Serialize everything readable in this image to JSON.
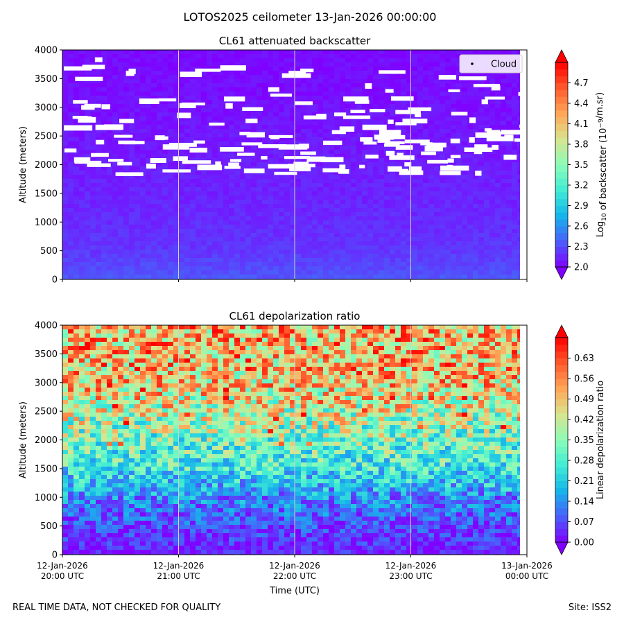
{
  "suptitle": "LOTOS2025 ceilometer 13-Jan-2026 00:00:00",
  "footer": {
    "left": "REAL TIME DATA, NOT CHECKED FOR QUALITY",
    "right": "Site: ISS2"
  },
  "colors": {
    "colormap": [
      "#8000ff",
      "#4a5efb",
      "#16b4eb",
      "#40ecd4",
      "#8cfcb8",
      "#d8e48e",
      "#ffa757",
      "#ff5a2c",
      "#ff0000"
    ],
    "cloud_marker": "#ffffff",
    "gridline": "#d0d0d0"
  },
  "chart_data": [
    {
      "type": "heatmap",
      "panel": "top",
      "title": "CL61 attenuated backscatter",
      "xlabel": "",
      "ylabel": "Altitude (meters)",
      "ylim": [
        0,
        4000
      ],
      "yticks": [
        0,
        500,
        1000,
        1500,
        2000,
        2500,
        3000,
        3500,
        4000
      ],
      "ytick_labels": [
        "0",
        "500",
        "1000",
        "1500",
        "2000",
        "2500",
        "3000",
        "3500",
        "4000"
      ],
      "xlim_hours": [
        20,
        24
      ],
      "xticks_hours": [
        20,
        21,
        22,
        23,
        24
      ],
      "show_xtick_labels": false,
      "grid": "vertical",
      "data_end_hour": 23.94,
      "legend": {
        "label": "Cloud",
        "placement": "top-right"
      },
      "colorbar": {
        "label": "Log10 of backscatter (10^-9/m.sr)",
        "range": [
          2.0,
          5.0
        ],
        "ticks": [
          2.0,
          2.3,
          2.6,
          2.9,
          3.2,
          3.5,
          3.8,
          4.1,
          4.4,
          4.7
        ],
        "tick_labels": [
          "2.0",
          "2.3",
          "2.6",
          "2.9",
          "3.2",
          "3.5",
          "3.8",
          "4.1",
          "4.4",
          "4.7"
        ],
        "extend": "both"
      },
      "profile": {
        "altitudes": [
          0,
          250,
          500,
          1000,
          1500,
          2000,
          2500,
          3000,
          3500,
          4000
        ],
        "values": [
          2.35,
          2.28,
          2.22,
          2.17,
          2.14,
          2.11,
          2.09,
          2.07,
          2.05,
          2.04
        ]
      },
      "cloud_band": [
        1850,
        3980
      ]
    },
    {
      "type": "heatmap",
      "panel": "bottom",
      "title": "CL61 depolarization ratio",
      "xlabel": "Time (UTC)",
      "ylabel": "Altitude (meters)",
      "ylim": [
        0,
        4000
      ],
      "yticks": [
        0,
        500,
        1000,
        1500,
        2000,
        2500,
        3000,
        3500,
        4000
      ],
      "ytick_labels": [
        "0",
        "500",
        "1000",
        "1500",
        "2000",
        "2500",
        "3000",
        "3500",
        "4000"
      ],
      "xlim_hours": [
        20,
        24
      ],
      "xticks_hours": [
        20,
        21,
        22,
        23,
        24
      ],
      "xtick_labels": [
        [
          "12-Jan-2026",
          "20:00 UTC"
        ],
        [
          "12-Jan-2026",
          "21:00 UTC"
        ],
        [
          "12-Jan-2026",
          "22:00 UTC"
        ],
        [
          "12-Jan-2026",
          "23:00 UTC"
        ],
        [
          "13-Jan-2026",
          "00:00 UTC"
        ]
      ],
      "grid": "vertical",
      "data_end_hour": 23.94,
      "colorbar": {
        "label": "Linear depolarization ratio",
        "range": [
          0.0,
          0.7
        ],
        "ticks": [
          0.0,
          0.07,
          0.14,
          0.21,
          0.28,
          0.35,
          0.42,
          0.49,
          0.56,
          0.63
        ],
        "tick_labels": [
          "0.00",
          "0.07",
          "0.14",
          "0.21",
          "0.28",
          "0.35",
          "0.42",
          "0.49",
          "0.56",
          "0.63"
        ],
        "extend": "both"
      },
      "profile": {
        "altitudes": [
          0,
          500,
          1000,
          1250,
          1500,
          1800,
          2000,
          2300,
          2600,
          3000,
          3500,
          4000
        ],
        "values": [
          0.03,
          0.07,
          0.13,
          0.2,
          0.26,
          0.3,
          0.33,
          0.38,
          0.43,
          0.48,
          0.5,
          0.51
        ]
      }
    }
  ]
}
